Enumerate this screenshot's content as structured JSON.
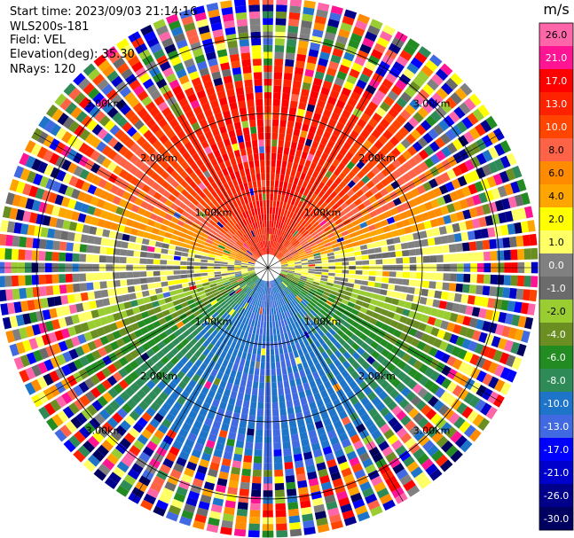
{
  "header": {
    "start_time": "Start time: 2023/09/03 21:14:16",
    "instrument": "WLS200s-181",
    "field": "Field: VEL",
    "elevation": "Elevation(deg): 35.30",
    "nrays": "NRays: 120"
  },
  "chart_data": {
    "type": "heatmap",
    "projection": "polar (PPI)",
    "field": "VEL",
    "units": "m/s",
    "nrays": 120,
    "elevation_deg": 35.3,
    "range_rings_km": [
      1.0,
      2.0,
      3.0
    ],
    "ring_labels": [
      "1.00km",
      "2.00km",
      "3.00km"
    ],
    "max_range_km": 3.5,
    "spoke_angles_deg": [
      0,
      30,
      60,
      90,
      120,
      150,
      180,
      210,
      240,
      270,
      300,
      330
    ],
    "colorbar": {
      "unit_label": "m/s",
      "ticks": [
        "26.0",
        "21.0",
        "17.0",
        "13.0",
        "10.0",
        "8.0",
        "6.0",
        "4.0",
        "2.0",
        "1.0",
        "0.0",
        "-1.0",
        "-2.0",
        "-4.0",
        "-6.0",
        "-8.0",
        "-10.0",
        "-13.0",
        "-17.0",
        "-21.0",
        "-26.0",
        "-30.0"
      ],
      "colors": [
        "#ff66aa",
        "#ff1493",
        "#ff0000",
        "#ff2200",
        "#ff4500",
        "#ff6347",
        "#ff8c00",
        "#ffa500",
        "#ffff00",
        "#ffff66",
        "#808080",
        "#6b6b6b",
        "#9acd32",
        "#6b8e23",
        "#228b22",
        "#2e8b57",
        "#1e74c9",
        "#4169e1",
        "#0000ff",
        "#0000cd",
        "#00008b",
        "#000060"
      ]
    },
    "velocity_pattern": {
      "north_sector": "positive (+8 to +17 m/s, orange/red)",
      "near_horizontal": "around 0 m/s (yellow/grey)",
      "south_sector": "negative (-6 to -13 m/s, green/blue)",
      "outer_ranges": "noise (random colors)"
    }
  }
}
